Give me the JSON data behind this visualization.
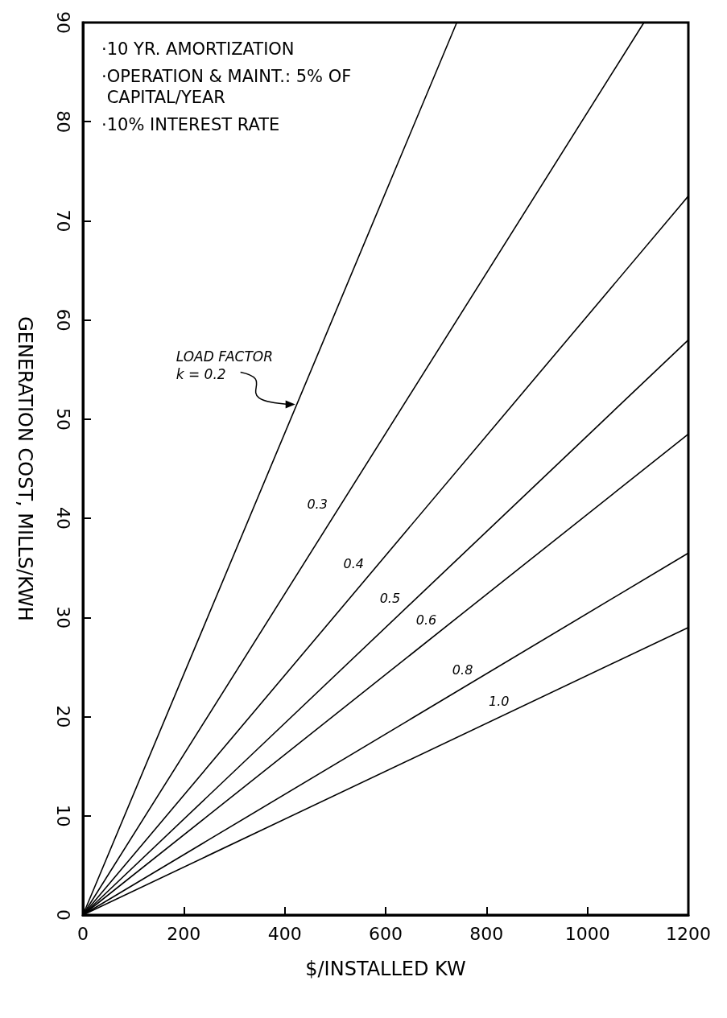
{
  "chart_data": {
    "type": "line",
    "xlabel": "$/INSTALLED KW",
    "ylabel": "GENERATION COST, MILLS/KWH",
    "xlim": [
      0,
      1200
    ],
    "xticks": [
      0,
      200,
      400,
      600,
      800,
      1000,
      1200
    ],
    "ylim": [
      0,
      90
    ],
    "yticks": [
      0,
      10,
      20,
      30,
      40,
      50,
      60,
      70,
      80,
      90
    ],
    "grid": false,
    "legend": false,
    "marker": "none",
    "line_style": "solid",
    "annotations": [
      "·10 YR. AMORTIZATION",
      "·OPERATION & MAINT.: 5% OF CAPITAL/YEAR",
      "·10% INTEREST RATE",
      {
        "text": "LOAD FACTOR\nk = 0.2",
        "x": 424,
        "y": 51.5
      }
    ],
    "series": [
      {
        "color": "#000000",
        "x": [
          0,
          741
        ],
        "values": [
          0,
          90
        ]
      },
      {
        "name": "0.3",
        "color": "#000000",
        "x": [
          0,
          1112
        ],
        "values": [
          0,
          90
        ]
      },
      {
        "name": "0.4",
        "color": "#000000",
        "x": [
          0,
          1200
        ],
        "values": [
          0,
          72.5
        ]
      },
      {
        "name": "0.5",
        "color": "#000000",
        "x": [
          0,
          1200
        ],
        "values": [
          0,
          58
        ]
      },
      {
        "name": "0.6",
        "color": "#000000",
        "x": [
          0,
          1200
        ],
        "values": [
          0,
          48.5
        ]
      },
      {
        "name": "0.8",
        "color": "#000000",
        "x": [
          0,
          1200
        ],
        "values": [
          0,
          36.5
        ]
      },
      {
        "name": "1.0",
        "color": "#000000",
        "x": [
          0,
          1200
        ],
        "values": [
          0,
          29
        ]
      }
    ]
  }
}
